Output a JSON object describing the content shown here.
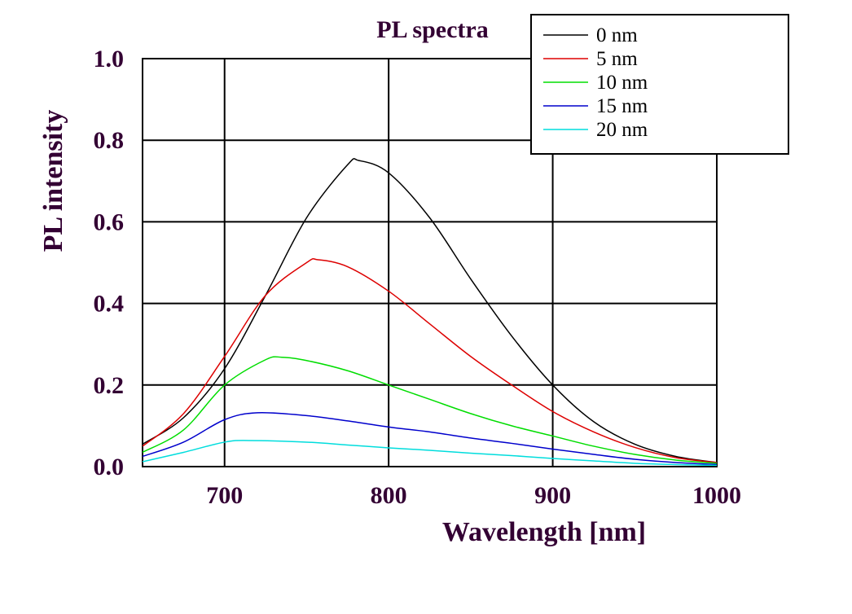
{
  "chart_data": {
    "type": "line",
    "title": "PL spectra",
    "xlabel": "Wavelength [nm]",
    "ylabel": "PL intensity",
    "xlim": [
      650,
      1000
    ],
    "ylim": [
      0,
      1.0
    ],
    "xticks": [
      700,
      800,
      900,
      1000
    ],
    "xtick_labels": [
      "700",
      "800",
      "900",
      "1000"
    ],
    "yticks": [
      0,
      0.2,
      0.4,
      0.6,
      0.8,
      1.0
    ],
    "ytick_labels": [
      "0.0",
      "0.2",
      "0.4",
      "0.6",
      "0.8",
      "1.0"
    ],
    "grid": true,
    "legend_position": "top-right",
    "series": [
      {
        "name": "0 nm",
        "color": "#000000",
        "x": [
          650,
          675,
          700,
          725,
          750,
          775,
          782,
          800,
          825,
          850,
          875,
          900,
          925,
          950,
          975,
          1000
        ],
        "y": [
          0.055,
          0.12,
          0.24,
          0.42,
          0.61,
          0.74,
          0.75,
          0.72,
          0.61,
          0.46,
          0.32,
          0.2,
          0.11,
          0.055,
          0.025,
          0.01
        ]
      },
      {
        "name": "5 nm",
        "color": "#dd0000",
        "x": [
          650,
          675,
          700,
          725,
          750,
          757,
          775,
          800,
          825,
          850,
          875,
          900,
          925,
          950,
          975,
          1000
        ],
        "y": [
          0.05,
          0.13,
          0.27,
          0.42,
          0.5,
          0.507,
          0.49,
          0.43,
          0.35,
          0.27,
          0.2,
          0.135,
          0.085,
          0.047,
          0.022,
          0.01
        ]
      },
      {
        "name": "10 nm",
        "color": "#00dd00",
        "x": [
          650,
          675,
          700,
          725,
          735,
          750,
          775,
          800,
          825,
          850,
          875,
          900,
          925,
          950,
          975,
          1000
        ],
        "y": [
          0.035,
          0.09,
          0.2,
          0.262,
          0.268,
          0.26,
          0.235,
          0.2,
          0.165,
          0.13,
          0.1,
          0.075,
          0.05,
          0.03,
          0.016,
          0.008
        ]
      },
      {
        "name": "15 nm",
        "color": "#0000cc",
        "x": [
          650,
          675,
          700,
          720,
          750,
          775,
          800,
          825,
          850,
          875,
          900,
          925,
          950,
          975,
          1000
        ],
        "y": [
          0.025,
          0.06,
          0.115,
          0.132,
          0.125,
          0.112,
          0.097,
          0.085,
          0.07,
          0.057,
          0.043,
          0.03,
          0.018,
          0.01,
          0.005
        ]
      },
      {
        "name": "20 nm",
        "color": "#00dddd",
        "x": [
          650,
          675,
          700,
          715,
          750,
          775,
          800,
          825,
          850,
          875,
          900,
          925,
          950,
          975,
          1000
        ],
        "y": [
          0.012,
          0.035,
          0.06,
          0.064,
          0.06,
          0.053,
          0.046,
          0.04,
          0.033,
          0.027,
          0.02,
          0.014,
          0.008,
          0.005,
          0.003
        ]
      }
    ]
  }
}
